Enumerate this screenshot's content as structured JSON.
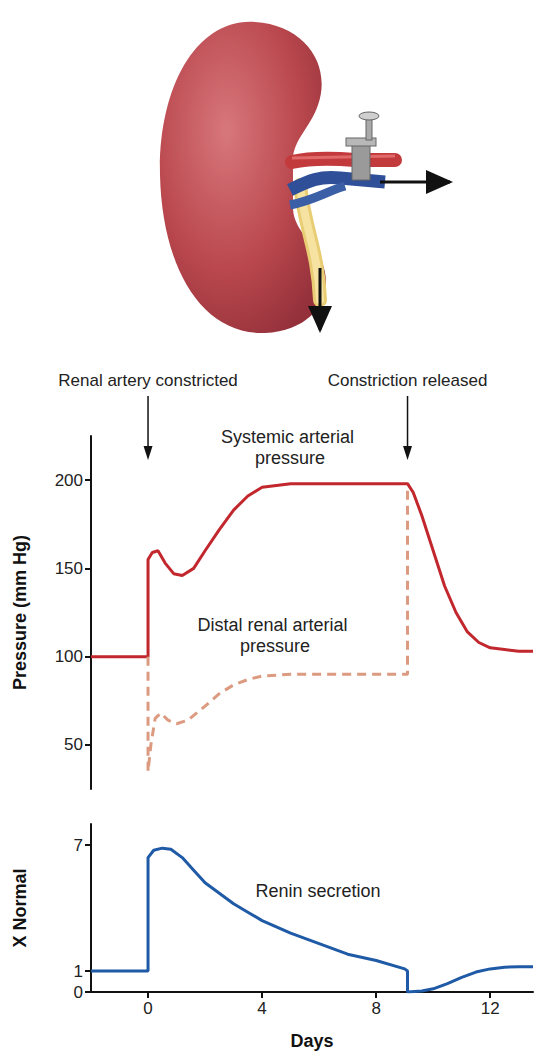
{
  "chart_data": [
    {
      "type": "line",
      "y_label": "Pressure (mm Hg)",
      "annotations": [
        {
          "text": "Renal artery constricted",
          "x": 0
        },
        {
          "text": "Constriction released",
          "x": 9.1
        }
      ],
      "xlim": [
        -2,
        13.5
      ],
      "ylim": [
        25,
        225
      ],
      "yticks": [
        50,
        100,
        150,
        200
      ],
      "grid": false,
      "tick_labels": "y",
      "series": [
        {
          "name": "Systemic arterial pressure",
          "color": "#c1272d",
          "line_style": "solid",
          "x": [
            -2,
            0,
            0,
            0.15,
            0.35,
            0.6,
            0.9,
            1.2,
            1.6,
            2,
            2.5,
            3,
            3.5,
            4,
            5,
            6,
            7,
            8,
            9.1,
            9.3,
            9.6,
            10,
            10.4,
            10.8,
            11.2,
            11.6,
            12,
            12.5,
            13,
            13.5
          ],
          "values": [
            100,
            100,
            155,
            159,
            160,
            153,
            147,
            146,
            150,
            160,
            172,
            183,
            191,
            196,
            198,
            198,
            198,
            198,
            198,
            193,
            180,
            160,
            140,
            125,
            114,
            108,
            105,
            104,
            103,
            103
          ]
        },
        {
          "name": "Distal renal arterial pressure",
          "color": "#dc9a80",
          "line_style": "dashed",
          "x": [
            0,
            0,
            0.1,
            0.25,
            0.45,
            0.7,
            1,
            1.4,
            2,
            2.5,
            3,
            3.5,
            4,
            5,
            6,
            7,
            8,
            9.1,
            9.1
          ],
          "values": [
            100,
            35,
            50,
            65,
            68,
            64,
            62,
            64,
            72,
            79,
            84,
            87,
            89,
            90,
            90,
            90,
            90,
            90,
            196
          ]
        }
      ]
    },
    {
      "type": "line",
      "x_label": "Days",
      "y_label": "X Normal",
      "xlim": [
        -2,
        13.5
      ],
      "ylim": [
        0,
        8
      ],
      "xticks": [
        0,
        4,
        8,
        12
      ],
      "yticks": [
        0,
        1,
        7
      ],
      "grid": false,
      "series": [
        {
          "name": "Renin secretion",
          "color": "#1f5aa6",
          "line_style": "solid",
          "x": [
            -2,
            0,
            0,
            0.2,
            0.5,
            0.8,
            1.2,
            1.6,
            2,
            2.5,
            3,
            3.5,
            4,
            5,
            6,
            7,
            8,
            9,
            9.1,
            9.1,
            9.6,
            10,
            10.5,
            11,
            11.5,
            12,
            12.5,
            13,
            13.5
          ],
          "values": [
            1,
            1,
            6.4,
            6.75,
            6.85,
            6.8,
            6.4,
            5.8,
            5.2,
            4.7,
            4.2,
            3.8,
            3.4,
            2.8,
            2.3,
            1.8,
            1.5,
            1.1,
            1.0,
            0,
            0.05,
            0.15,
            0.4,
            0.7,
            0.95,
            1.1,
            1.18,
            1.2,
            1.2
          ]
        }
      ]
    }
  ]
}
